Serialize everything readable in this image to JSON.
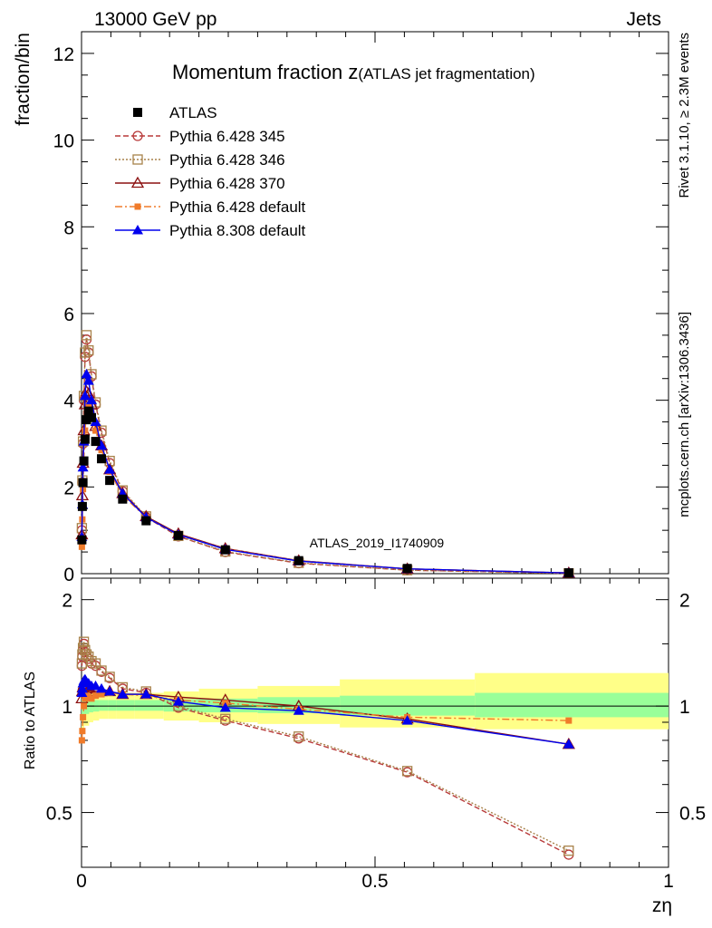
{
  "header": {
    "left": "13000 GeV pp",
    "right": "Jets"
  },
  "side_texts": {
    "rivet": "Rivet 3.1.10, ≥ 2.3M events",
    "mcplots": "mcplots.cern.ch [arXiv:1306.3436]"
  },
  "watermark": "ATLAS_2019_I1740909",
  "colors": {
    "band_inner": "#99ff99",
    "band_outer": "#ffff88",
    "ATLAS": "#000000",
    "Pythia 6.428 345": "#b83a3a",
    "Pythia 6.428 346": "#a8824a",
    "Pythia 6.428 370": "#8b1010",
    "Pythia 6.428 default": "#f07b2a",
    "Pythia 8.308 default": "#0000ee"
  },
  "chart_data": [
    {
      "type": "line",
      "panel": "main",
      "title": "Momentum fraction z",
      "title_suffix": "(ATLAS jet fragmentation)",
      "xlabel": "",
      "ylabel": "fraction/bin",
      "xlim": [
        0,
        1
      ],
      "ylim": [
        0,
        12.5
      ],
      "yticks": [
        0,
        2,
        4,
        6,
        8,
        10,
        12
      ],
      "x": [
        0.0006,
        0.0014,
        0.0025,
        0.004,
        0.006,
        0.0085,
        0.012,
        0.017,
        0.024,
        0.034,
        0.048,
        0.07,
        0.11,
        0.165,
        0.245,
        0.37,
        0.555,
        0.83
      ],
      "series": [
        {
          "name": "ATLAS",
          "marker": "filled-square",
          "line": "none",
          "values": [
            0.78,
            1.55,
            2.1,
            2.6,
            3.1,
            3.55,
            3.75,
            3.6,
            3.05,
            2.65,
            2.15,
            1.72,
            1.22,
            0.88,
            0.55,
            0.3,
            0.12,
            0.02
          ]
        },
        {
          "name": "Pythia 6.428 345",
          "marker": "open-circle",
          "line": "dashed",
          "values": [
            1.0,
            2.1,
            3.0,
            4.0,
            5.0,
            5.4,
            5.1,
            4.55,
            3.9,
            3.25,
            2.55,
            1.9,
            1.3,
            0.86,
            0.5,
            0.24,
            0.08,
            0.008
          ]
        },
        {
          "name": "Pythia 6.428 346",
          "marker": "open-square",
          "line": "dotted",
          "values": [
            1.05,
            2.15,
            3.05,
            4.1,
            5.1,
            5.5,
            5.15,
            4.6,
            3.95,
            3.3,
            2.6,
            1.92,
            1.32,
            0.87,
            0.51,
            0.25,
            0.08,
            0.007
          ]
        },
        {
          "name": "Pythia 6.428 370",
          "marker": "open-triangle",
          "line": "solid",
          "values": [
            0.9,
            1.8,
            2.55,
            3.3,
            3.9,
            4.2,
            4.15,
            3.9,
            3.4,
            2.95,
            2.4,
            1.85,
            1.32,
            0.92,
            0.58,
            0.3,
            0.11,
            0.016
          ]
        },
        {
          "name": "Pythia 6.428 default",
          "marker": "filled-small-square",
          "line": "dashdot",
          "values": [
            0.62,
            1.25,
            1.95,
            2.6,
            3.3,
            3.7,
            3.85,
            3.7,
            3.3,
            2.85,
            2.35,
            1.8,
            1.3,
            0.9,
            0.57,
            0.3,
            0.11,
            0.018
          ]
        },
        {
          "name": "Pythia 8.308 default",
          "marker": "filled-triangle",
          "line": "solid",
          "values": [
            0.85,
            1.6,
            2.45,
            3.05,
            4.1,
            4.6,
            4.45,
            4.0,
            3.5,
            2.95,
            2.4,
            1.85,
            1.3,
            0.9,
            0.56,
            0.29,
            0.11,
            0.016
          ]
        }
      ]
    },
    {
      "type": "line",
      "panel": "ratio",
      "xlabel": "zη",
      "ylabel": "Ratio to ATLAS",
      "xlim": [
        0,
        1
      ],
      "ylim": [
        0.35,
        2.3
      ],
      "yscale": "log",
      "yticks": [
        0.5,
        1,
        2
      ],
      "xticks": [
        0,
        0.5,
        1
      ],
      "reference": 1,
      "band_edges": [
        0,
        0.0045,
        0.013,
        0.02,
        0.03,
        0.045,
        0.06,
        0.09,
        0.14,
        0.2,
        0.3,
        0.44,
        0.67,
        1.0
      ],
      "band_inner": [
        [
          0.92,
          1.08
        ],
        [
          0.95,
          1.06
        ],
        [
          0.96,
          1.05
        ],
        [
          0.965,
          1.04
        ],
        [
          0.97,
          1.04
        ],
        [
          0.97,
          1.04
        ],
        [
          0.97,
          1.04
        ],
        [
          0.97,
          1.04
        ],
        [
          0.965,
          1.045
        ],
        [
          0.96,
          1.05
        ],
        [
          0.955,
          1.06
        ],
        [
          0.94,
          1.07
        ],
        [
          0.93,
          1.09
        ]
      ],
      "band_outer": [
        [
          0.86,
          1.14
        ],
        [
          0.88,
          1.12
        ],
        [
          0.9,
          1.1
        ],
        [
          0.91,
          1.09
        ],
        [
          0.92,
          1.09
        ],
        [
          0.92,
          1.09
        ],
        [
          0.92,
          1.09
        ],
        [
          0.92,
          1.09
        ],
        [
          0.91,
          1.1
        ],
        [
          0.9,
          1.12
        ],
        [
          0.89,
          1.14
        ],
        [
          0.87,
          1.19
        ],
        [
          0.86,
          1.24
        ]
      ],
      "x": [
        0.0006,
        0.0014,
        0.0025,
        0.004,
        0.006,
        0.0085,
        0.012,
        0.017,
        0.024,
        0.034,
        0.048,
        0.07,
        0.11,
        0.165,
        0.245,
        0.37,
        0.555,
        0.83
      ],
      "series": [
        {
          "name": "Pythia 6.428 345",
          "values": [
            1.3,
            1.38,
            1.44,
            1.5,
            1.42,
            1.38,
            1.36,
            1.32,
            1.3,
            1.25,
            1.2,
            1.12,
            1.09,
            0.99,
            0.91,
            0.81,
            0.65,
            0.38
          ]
        },
        {
          "name": "Pythia 6.428 346",
          "values": [
            1.32,
            1.4,
            1.46,
            1.52,
            1.44,
            1.4,
            1.38,
            1.34,
            1.32,
            1.26,
            1.21,
            1.13,
            1.1,
            1.0,
            0.92,
            0.82,
            0.655,
            0.39
          ]
        },
        {
          "name": "Pythia 6.428 370",
          "values": [
            1.05,
            1.1,
            1.13,
            1.15,
            1.14,
            1.13,
            1.12,
            1.1,
            1.1,
            1.1,
            1.1,
            1.08,
            1.08,
            1.06,
            1.04,
            1.0,
            0.92,
            0.78
          ]
        },
        {
          "name": "Pythia 6.428 default",
          "values": [
            0.8,
            0.85,
            0.93,
            1.0,
            1.05,
            1.07,
            1.06,
            1.05,
            1.07,
            1.08,
            1.09,
            1.08,
            1.07,
            1.04,
            1.02,
            0.98,
            0.93,
            0.91
          ]
        },
        {
          "name": "Pythia 8.308 default",
          "values": [
            1.09,
            1.12,
            1.16,
            1.18,
            1.19,
            1.17,
            1.16,
            1.14,
            1.14,
            1.12,
            1.1,
            1.08,
            1.08,
            1.03,
            0.99,
            0.97,
            0.91,
            0.78
          ]
        }
      ]
    }
  ]
}
